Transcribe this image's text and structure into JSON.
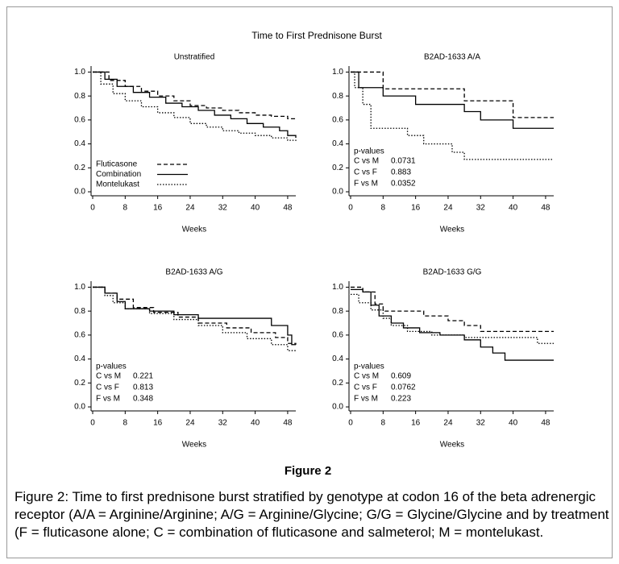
{
  "figure_title": "Time to First Prednisone Burst",
  "figure_label": "Figure 2",
  "caption": "Figure 2: Time to first prednisone burst stratified by genotype at codon 16 of the beta adrenergic receptor (A/A = Arginine/Arginine; A/G = Arginine/Glycine; G/G = Glycine/Glycine and by treatment (F = fluticasone alone; C = combination of fluticasone and salmeterol; M = montelukast.",
  "chart_data": [
    {
      "type": "step",
      "title": "Unstratified",
      "x_label": "Weeks",
      "xlim": [
        0,
        50
      ],
      "xticks": [
        0,
        8,
        16,
        24,
        32,
        40,
        48
      ],
      "ylim": [
        -0.02,
        1.05
      ],
      "yticks": [
        {
          "value": 0,
          "label": "0.0"
        },
        0.2,
        0.4,
        0.6,
        0.8,
        {
          "value": 1,
          "label": "1.0"
        }
      ],
      "legend": "lower left",
      "series": [
        {
          "name": "Fluticasone",
          "color": "#000000",
          "line_style": "dashed",
          "x": [
            0,
            4,
            8,
            12,
            16,
            20,
            24,
            28,
            32,
            36,
            40,
            44,
            48,
            50
          ],
          "values": [
            1.0,
            0.93,
            0.88,
            0.84,
            0.8,
            0.76,
            0.72,
            0.7,
            0.68,
            0.66,
            0.64,
            0.63,
            0.61,
            0.6
          ]
        },
        {
          "name": "Combination",
          "color": "#000000",
          "line_style": "solid",
          "x": [
            0,
            3,
            6,
            10,
            14,
            18,
            22,
            26,
            30,
            34,
            38,
            42,
            46,
            48,
            50
          ],
          "values": [
            1.0,
            0.94,
            0.88,
            0.83,
            0.79,
            0.74,
            0.71,
            0.68,
            0.64,
            0.61,
            0.57,
            0.54,
            0.51,
            0.47,
            0.45
          ]
        },
        {
          "name": "Montelukast",
          "color": "#000000",
          "line_style": "dotted",
          "x": [
            0,
            2,
            5,
            8,
            12,
            16,
            20,
            24,
            28,
            32,
            36,
            40,
            44,
            48,
            50
          ],
          "values": [
            1.0,
            0.9,
            0.82,
            0.76,
            0.71,
            0.66,
            0.62,
            0.57,
            0.54,
            0.51,
            0.49,
            0.47,
            0.45,
            0.43,
            0.42
          ]
        }
      ]
    },
    {
      "type": "step",
      "title": "B2AD-1633 A/A",
      "x_label": "Weeks",
      "xlim": [
        0,
        50
      ],
      "xticks": [
        0,
        8,
        16,
        24,
        32,
        40,
        48
      ],
      "ylim": [
        -0.02,
        1.05
      ],
      "yticks": [
        {
          "value": 0,
          "label": "0.0"
        },
        0.2,
        0.4,
        0.6,
        0.8,
        {
          "value": 1,
          "label": "1.0"
        }
      ],
      "pvalues": {
        "title": "p-values",
        "rows": [
          {
            "label": "C vs M",
            "value": 0.0731
          },
          {
            "label": "C vs F",
            "value": 0.883
          },
          {
            "label": "F vs M",
            "value": 0.0352
          }
        ]
      },
      "series": [
        {
          "color": "#000000",
          "line_style": "dashed",
          "x": [
            0,
            8,
            28,
            40,
            50
          ],
          "values": [
            1.0,
            0.86,
            0.76,
            0.62,
            0.62
          ]
        },
        {
          "color": "#000000",
          "line_style": "solid",
          "x": [
            0,
            2,
            8,
            16,
            28,
            32,
            40,
            50
          ],
          "values": [
            1.0,
            0.87,
            0.8,
            0.73,
            0.67,
            0.6,
            0.53,
            0.53
          ]
        },
        {
          "color": "#000000",
          "line_style": "dotted",
          "x": [
            0,
            1,
            3,
            5,
            14,
            18,
            25,
            28,
            50
          ],
          "values": [
            1.0,
            0.87,
            0.73,
            0.53,
            0.47,
            0.4,
            0.33,
            0.27,
            0.27
          ]
        }
      ]
    },
    {
      "type": "step",
      "title": "B2AD-1633 A/G",
      "x_label": "Weeks",
      "xlim": [
        0,
        50
      ],
      "xticks": [
        0,
        8,
        16,
        24,
        32,
        40,
        48
      ],
      "ylim": [
        -0.02,
        1.05
      ],
      "yticks": [
        {
          "value": 0,
          "label": "0.0"
        },
        0.2,
        0.4,
        0.6,
        0.8,
        {
          "value": 1,
          "label": "1.0"
        }
      ],
      "pvalues": {
        "title": "p-values",
        "rows": [
          {
            "label": "C vs M",
            "value": 0.221
          },
          {
            "label": "C vs F",
            "value": 0.813
          },
          {
            "label": "F vs M",
            "value": 0.348
          }
        ]
      },
      "series": [
        {
          "color": "#000000",
          "line_style": "dashed",
          "x": [
            0,
            3,
            6,
            10,
            15,
            21,
            26,
            33,
            39,
            45,
            48,
            50
          ],
          "values": [
            1.0,
            0.95,
            0.9,
            0.83,
            0.79,
            0.75,
            0.7,
            0.66,
            0.62,
            0.58,
            0.53,
            0.52
          ]
        },
        {
          "color": "#000000",
          "line_style": "solid",
          "x": [
            0,
            3,
            6,
            8,
            14,
            20,
            26,
            44,
            48,
            49,
            50
          ],
          "values": [
            1.0,
            0.95,
            0.88,
            0.82,
            0.8,
            0.77,
            0.74,
            0.68,
            0.6,
            0.52,
            0.52
          ]
        },
        {
          "color": "#000000",
          "line_style": "dotted",
          "x": [
            0,
            3,
            5,
            8,
            14,
            20,
            26,
            32,
            38,
            44,
            48,
            50
          ],
          "values": [
            1.0,
            0.93,
            0.87,
            0.82,
            0.78,
            0.73,
            0.68,
            0.62,
            0.57,
            0.52,
            0.47,
            0.47
          ]
        }
      ]
    },
    {
      "type": "step",
      "title": "B2AD-1633 G/G",
      "x_label": "Weeks",
      "xlim": [
        0,
        50
      ],
      "xticks": [
        0,
        8,
        16,
        24,
        32,
        40,
        48
      ],
      "ylim": [
        -0.02,
        1.05
      ],
      "yticks": [
        {
          "value": 0,
          "label": "0.0"
        },
        0.2,
        0.4,
        0.6,
        0.8,
        {
          "value": 1,
          "label": "1.0"
        }
      ],
      "pvalues": {
        "title": "p-values",
        "rows": [
          {
            "label": "C vs M",
            "value": 0.609
          },
          {
            "label": "C vs F",
            "value": 0.0762
          },
          {
            "label": "F vs M",
            "value": 0.223
          }
        ]
      },
      "series": [
        {
          "color": "#000000",
          "line_style": "dashed",
          "x": [
            0,
            3,
            6,
            8,
            18,
            24,
            28,
            32,
            50
          ],
          "values": [
            1.0,
            0.96,
            0.86,
            0.8,
            0.76,
            0.72,
            0.68,
            0.63,
            0.63
          ]
        },
        {
          "color": "#000000",
          "line_style": "solid",
          "x": [
            0,
            3,
            5,
            7,
            10,
            13,
            17,
            22,
            28,
            32,
            35,
            38,
            50
          ],
          "values": [
            0.98,
            0.96,
            0.85,
            0.76,
            0.7,
            0.66,
            0.62,
            0.6,
            0.56,
            0.5,
            0.45,
            0.39,
            0.39
          ]
        },
        {
          "color": "#000000",
          "line_style": "dotted",
          "x": [
            0,
            2,
            5,
            8,
            10,
            14,
            20,
            28,
            46,
            50
          ],
          "values": [
            0.94,
            0.87,
            0.81,
            0.74,
            0.68,
            0.63,
            0.6,
            0.58,
            0.53,
            0.53
          ]
        }
      ]
    }
  ]
}
